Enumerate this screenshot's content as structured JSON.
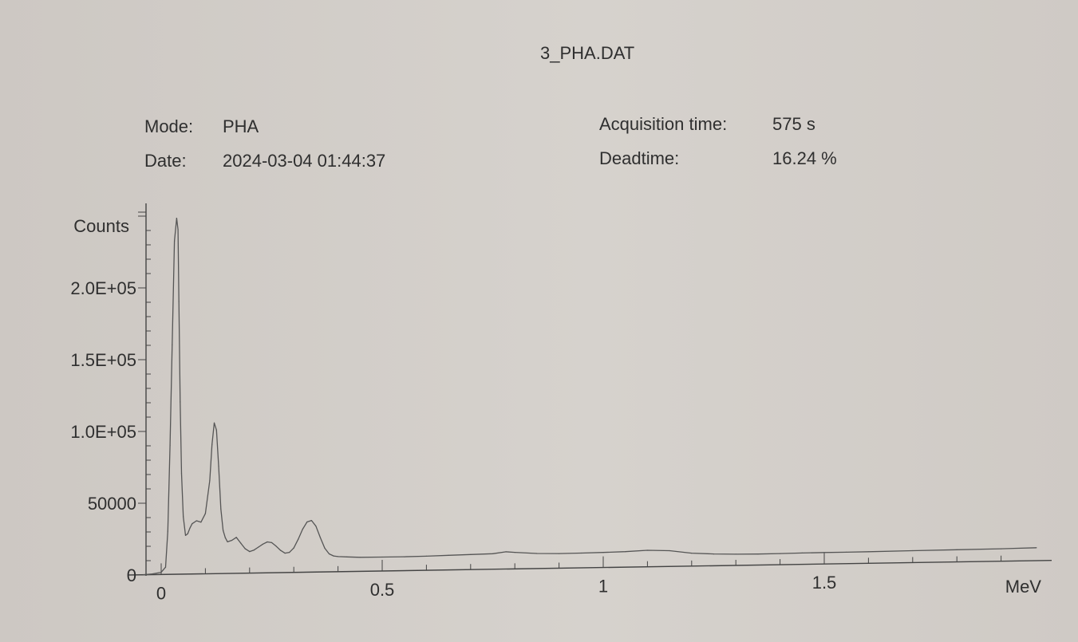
{
  "header": {
    "file_title": "3_PHA.DAT",
    "mode_label": "Mode:",
    "mode_value": "PHA",
    "date_label": "Date:",
    "date_value": "2024-03-04 01:44:37",
    "acq_label": "Acquisition time:",
    "acq_value": "575 s",
    "dead_label": "Deadtime:",
    "dead_value": "16.24 %"
  },
  "chart_data": {
    "type": "line",
    "title": "3_PHA.DAT",
    "xlabel": "MeV",
    "ylabel": "Counts",
    "xlim": [
      -0.05,
      2.0
    ],
    "ylim": [
      0,
      250000
    ],
    "x_ticks": [
      {
        "value": 0,
        "label": "0"
      },
      {
        "value": 0.5,
        "label": "0.5"
      },
      {
        "value": 1,
        "label": "1"
      },
      {
        "value": 1.5,
        "label": "1.5"
      }
    ],
    "y_ticks": [
      {
        "value": 0,
        "label": "0"
      },
      {
        "value": 50000,
        "label": "50000"
      },
      {
        "value": 100000,
        "label": "1.0E+05"
      },
      {
        "value": 150000,
        "label": "1.5E+05"
      },
      {
        "value": 200000,
        "label": "2.0E+05"
      }
    ],
    "grid": false,
    "line_color": "#555555",
    "series": [
      {
        "x": [
          -0.04,
          -0.02,
          0.0,
          0.01,
          0.015,
          0.02,
          0.025,
          0.03,
          0.035,
          0.038,
          0.04,
          0.043,
          0.046,
          0.05,
          0.055,
          0.06,
          0.065,
          0.07,
          0.08,
          0.09,
          0.1,
          0.11,
          0.115,
          0.12,
          0.125,
          0.13,
          0.135,
          0.14,
          0.145,
          0.15,
          0.16,
          0.17,
          0.18,
          0.19,
          0.2,
          0.21,
          0.22,
          0.23,
          0.24,
          0.25,
          0.26,
          0.27,
          0.28,
          0.29,
          0.3,
          0.31,
          0.32,
          0.33,
          0.34,
          0.35,
          0.36,
          0.37,
          0.38,
          0.39,
          0.4,
          0.42,
          0.45,
          0.5,
          0.55,
          0.6,
          0.65,
          0.7,
          0.75,
          0.78,
          0.8,
          0.85,
          0.9,
          0.95,
          1.0,
          1.05,
          1.1,
          1.15,
          1.2,
          1.25,
          1.3,
          1.35,
          1.4,
          1.45,
          1.5,
          1.55,
          1.6,
          1.7,
          1.8,
          1.9,
          1.98
        ],
        "y": [
          0,
          500,
          1500,
          5000,
          30000,
          90000,
          160000,
          232000,
          248000,
          240000,
          190000,
          120000,
          70000,
          40000,
          27000,
          28000,
          32000,
          35000,
          37000,
          36000,
          42000,
          65000,
          90000,
          105000,
          100000,
          75000,
          45000,
          30000,
          25000,
          22000,
          23000,
          25000,
          21000,
          17000,
          15000,
          16000,
          18000,
          20000,
          21500,
          21000,
          18500,
          15500,
          13500,
          14000,
          17000,
          23000,
          30000,
          35000,
          36000,
          32000,
          24000,
          16500,
          12500,
          11000,
          10500,
          10200,
          9800,
          9700,
          9700,
          9800,
          10200,
          10500,
          10800,
          12000,
          11500,
          10500,
          10200,
          10300,
          10500,
          10800,
          11500,
          11000,
          9000,
          8200,
          7800,
          7700,
          7800,
          7900,
          8000,
          8000,
          8100,
          8300,
          8500,
          8700,
          9000
        ]
      }
    ]
  }
}
